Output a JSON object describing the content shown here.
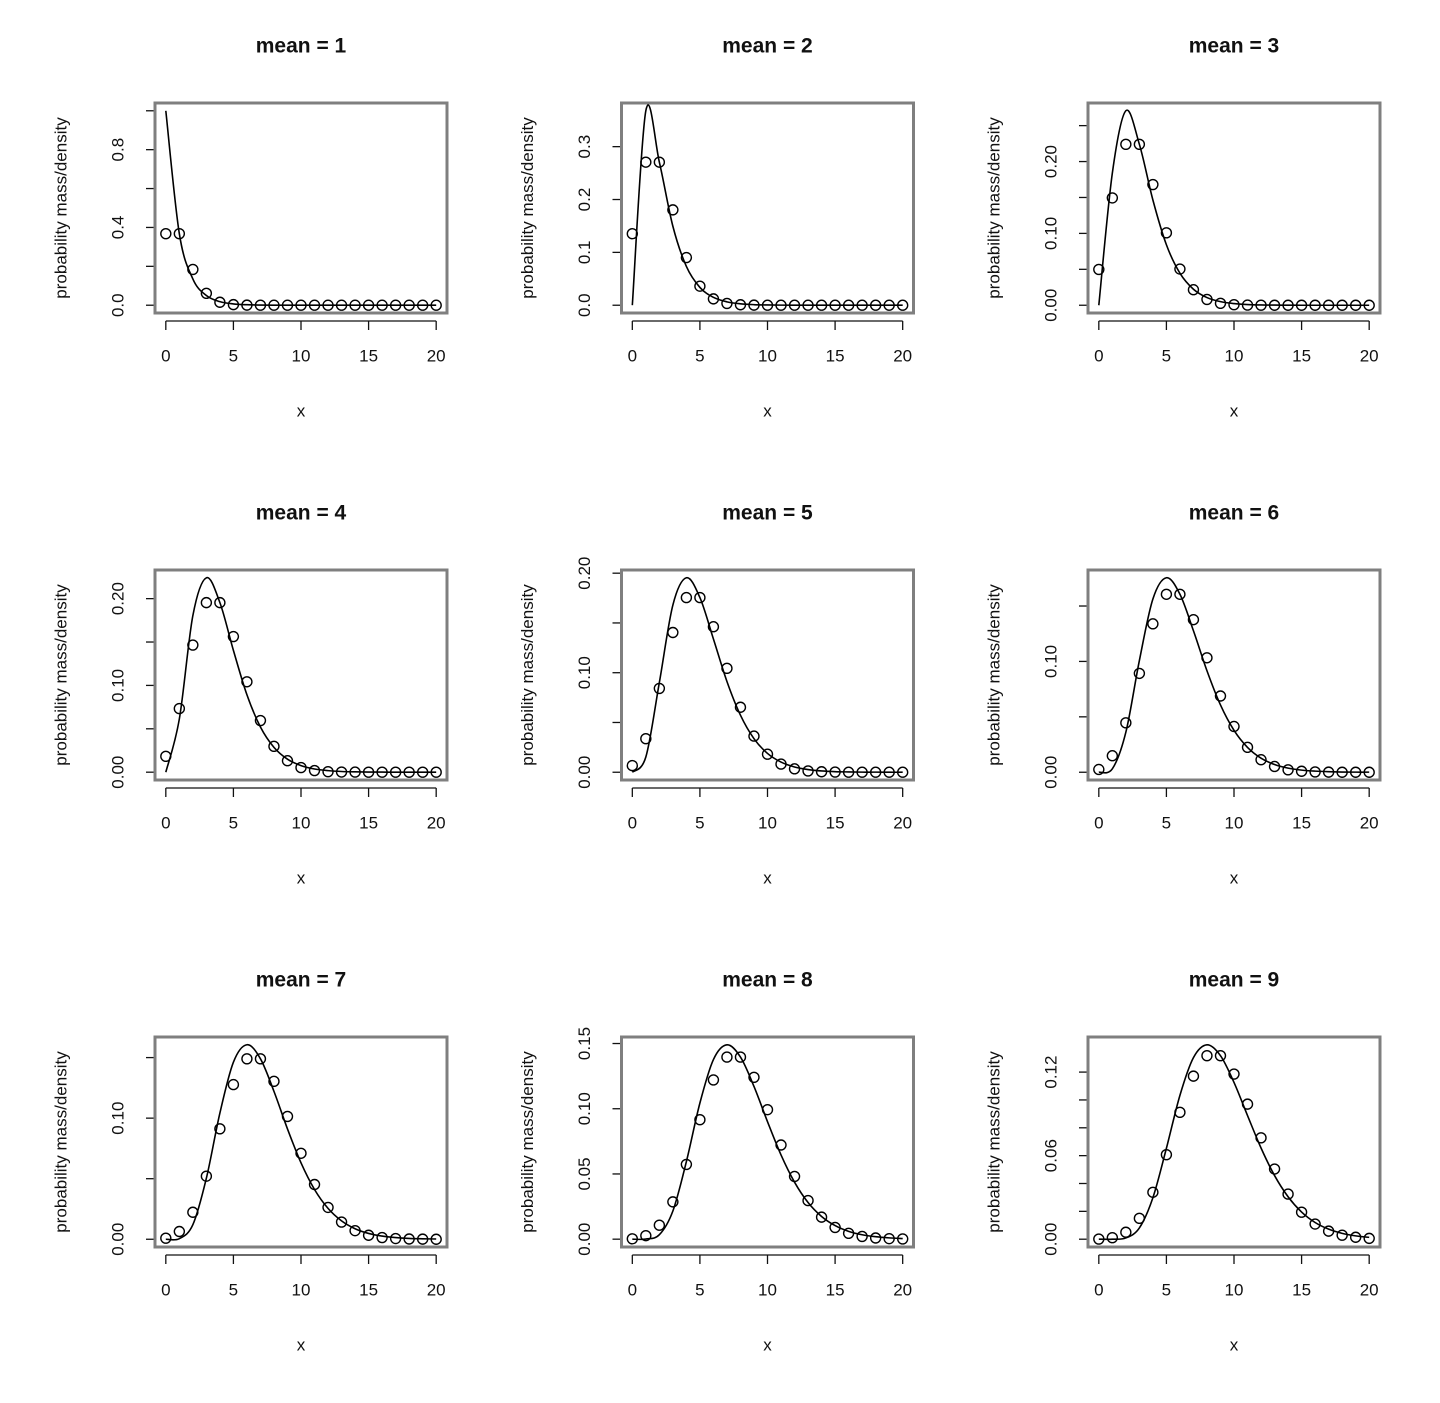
{
  "chart_data": [
    {
      "type": "line",
      "title": "mean = 1",
      "xlabel": "x",
      "ylabel": "probability mass/density",
      "x": [
        0,
        1,
        2,
        3,
        4,
        5,
        6,
        7,
        8,
        9,
        10,
        11,
        12,
        13,
        14,
        15,
        16,
        17,
        18,
        19,
        20
      ],
      "series": [
        {
          "style": "points",
          "color": "#000000",
          "values": [
            0.3679,
            0.3679,
            0.1839,
            0.0613,
            0.0153,
            0.0031,
            0.0005,
            0.0001,
            0,
            0,
            0,
            0,
            0,
            0,
            0,
            0,
            0,
            0,
            0,
            0,
            0
          ]
        },
        {
          "style": "line",
          "color": "#000000",
          "values": [
            1,
            0.3679,
            0.1353,
            0.0498,
            0.0183,
            0.0067,
            0.0025,
            0.0009,
            0.0003,
            0.0001,
            0,
            0,
            0,
            0,
            0,
            0,
            0,
            0,
            0,
            0,
            0
          ]
        }
      ],
      "xlim": [
        -0.8,
        20.8
      ],
      "xticks": [
        0,
        5,
        10,
        15,
        20
      ],
      "ylim": [
        -0.04,
        1.04
      ],
      "yticks": [
        {
          "value": 0,
          "label": "0.0"
        },
        0.4,
        0.8
      ],
      "yticks_unlabeled": [
        0.2,
        0.6,
        1
      ]
    },
    {
      "type": "line",
      "title": "mean = 2",
      "xlabel": "x",
      "ylabel": "probability mass/density",
      "x": [
        0,
        1,
        2,
        3,
        4,
        5,
        6,
        7,
        8,
        9,
        10,
        11,
        12,
        13,
        14,
        15,
        16,
        17,
        18,
        19,
        20
      ],
      "series": [
        {
          "style": "points",
          "color": "#000000",
          "values": [
            0.1353,
            0.2707,
            0.2707,
            0.1804,
            0.0902,
            0.0361,
            0.012,
            0.0034,
            0.0009,
            0.0002,
            0,
            0,
            0,
            0,
            0,
            0,
            0,
            0,
            0,
            0,
            0
          ]
        },
        {
          "style": "line",
          "color": "#000000",
          "values": [
            0,
            0.3679,
            0.2707,
            0.1494,
            0.0733,
            0.0337,
            0.0149,
            0.0064,
            0.0027,
            0.0011,
            0.0005,
            0.0002,
            0.0001,
            0,
            0,
            0,
            0,
            0,
            0,
            0,
            0
          ]
        }
      ],
      "xlim": [
        -0.8,
        20.8
      ],
      "xticks": [
        0,
        5,
        10,
        15,
        20
      ],
      "ylim": [
        -0.0147,
        0.3826
      ],
      "yticks": [
        {
          "value": 0,
          "label": "0.0"
        },
        0.1,
        0.2,
        0.3
      ],
      "yticks_unlabeled": []
    },
    {
      "type": "line",
      "title": "mean = 3",
      "xlabel": "x",
      "ylabel": "probability mass/density",
      "x": [
        0,
        1,
        2,
        3,
        4,
        5,
        6,
        7,
        8,
        9,
        10,
        11,
        12,
        13,
        14,
        15,
        16,
        17,
        18,
        19,
        20
      ],
      "series": [
        {
          "style": "points",
          "color": "#000000",
          "values": [
            0.0498,
            0.1494,
            0.224,
            0.224,
            0.168,
            0.1008,
            0.0504,
            0.0216,
            0.0081,
            0.0027,
            0.0008,
            0.0002,
            0.0001,
            0,
            0,
            0,
            0,
            0,
            0,
            0,
            0
          ]
        },
        {
          "style": "line",
          "color": "#000000",
          "values": [
            0,
            0.1839,
            0.2707,
            0.224,
            0.1465,
            0.0842,
            0.0446,
            0.0223,
            0.0107,
            0.005,
            0.0023,
            0.001,
            0.0004,
            0.0002,
            0.0001,
            0,
            0,
            0,
            0,
            0,
            0
          ]
        }
      ],
      "xlim": [
        -0.8,
        20.8
      ],
      "xticks": [
        0,
        5,
        10,
        15,
        20
      ],
      "ylim": [
        -0.0108,
        0.2815
      ],
      "yticks": [
        {
          "value": 0,
          "label": "0.00"
        },
        {
          "value": 0.1,
          "label": "0.10"
        },
        {
          "value": 0.2,
          "label": "0.20"
        }
      ],
      "yticks_unlabeled": [
        0.05,
        0.15,
        0.25
      ]
    },
    {
      "type": "line",
      "title": "mean = 4",
      "xlabel": "x",
      "ylabel": "probability mass/density",
      "x": [
        0,
        1,
        2,
        3,
        4,
        5,
        6,
        7,
        8,
        9,
        10,
        11,
        12,
        13,
        14,
        15,
        16,
        17,
        18,
        19,
        20
      ],
      "series": [
        {
          "style": "points",
          "color": "#000000",
          "values": [
            0.0183,
            0.0733,
            0.1465,
            0.1954,
            0.1954,
            0.1563,
            0.1042,
            0.0595,
            0.0298,
            0.0132,
            0.0053,
            0.0019,
            0.0006,
            0.0002,
            0.0001,
            0,
            0,
            0,
            0,
            0,
            0
          ]
        },
        {
          "style": "line",
          "color": "#000000",
          "values": [
            0,
            0.0613,
            0.1804,
            0.224,
            0.1954,
            0.1404,
            0.0892,
            0.0521,
            0.0286,
            0.015,
            0.0076,
            0.0037,
            0.0018,
            0.0008,
            0.0004,
            0.0002,
            0.0001,
            0,
            0,
            0,
            0
          ]
        }
      ],
      "xlim": [
        -0.8,
        20.8
      ],
      "xticks": [
        0,
        5,
        10,
        15,
        20
      ],
      "ylim": [
        -0.009,
        0.233
      ],
      "yticks": [
        {
          "value": 0,
          "label": "0.00"
        },
        {
          "value": 0.1,
          "label": "0.10"
        },
        {
          "value": 0.2,
          "label": "0.20"
        }
      ],
      "yticks_unlabeled": [
        0.05,
        0.15
      ]
    },
    {
      "type": "line",
      "title": "mean = 5",
      "xlabel": "x",
      "ylabel": "probability mass/density",
      "x": [
        0,
        1,
        2,
        3,
        4,
        5,
        6,
        7,
        8,
        9,
        10,
        11,
        12,
        13,
        14,
        15,
        16,
        17,
        18,
        19,
        20
      ],
      "series": [
        {
          "style": "points",
          "color": "#000000",
          "values": [
            0.0067,
            0.0337,
            0.0842,
            0.1404,
            0.1755,
            0.1755,
            0.1462,
            0.1044,
            0.0653,
            0.0363,
            0.0181,
            0.0082,
            0.0034,
            0.0013,
            0.0005,
            0.0002,
            0,
            0,
            0,
            0,
            0
          ]
        },
        {
          "style": "line",
          "color": "#000000",
          "values": [
            0,
            0.0153,
            0.0902,
            0.168,
            0.1954,
            0.1755,
            0.1339,
            0.0912,
            0.0573,
            0.0337,
            0.0189,
            0.0102,
            0.0053,
            0.0027,
            0.0013,
            0.0006,
            0.0003,
            0.0001,
            0.0001,
            0,
            0
          ]
        }
      ],
      "xlim": [
        -0.8,
        20.8
      ],
      "xticks": [
        0,
        5,
        10,
        15,
        20
      ],
      "ylim": [
        -0.0078,
        0.2032
      ],
      "yticks": [
        {
          "value": 0,
          "label": "0.00"
        },
        {
          "value": 0.1,
          "label": "0.10"
        },
        {
          "value": 0.2,
          "label": "0.20"
        }
      ],
      "yticks_unlabeled": [
        0.05,
        0.15
      ]
    },
    {
      "type": "line",
      "title": "mean = 6",
      "xlabel": "x",
      "ylabel": "probability mass/density",
      "x": [
        0,
        1,
        2,
        3,
        4,
        5,
        6,
        7,
        8,
        9,
        10,
        11,
        12,
        13,
        14,
        15,
        16,
        17,
        18,
        19,
        20
      ],
      "series": [
        {
          "style": "points",
          "color": "#000000",
          "values": [
            0.0025,
            0.0149,
            0.0446,
            0.0892,
            0.1339,
            0.1606,
            0.1606,
            0.1377,
            0.1033,
            0.0688,
            0.0413,
            0.0225,
            0.0113,
            0.0052,
            0.0022,
            0.0009,
            0.0003,
            0.0001,
            0,
            0,
            0
          ]
        },
        {
          "style": "line",
          "color": "#000000",
          "values": [
            0,
            0.0031,
            0.0361,
            0.1008,
            0.1563,
            0.1755,
            0.1606,
            0.1277,
            0.0916,
            0.0607,
            0.0378,
            0.0224,
            0.0127,
            0.007,
            0.0037,
            0.0019,
            0.001,
            0.0005,
            0.0002,
            0.0001,
            0.0001
          ]
        }
      ],
      "xlim": [
        -0.8,
        20.8
      ],
      "xticks": [
        0,
        5,
        10,
        15,
        20
      ],
      "ylim": [
        -0.007,
        0.1825
      ],
      "yticks": [
        {
          "value": 0,
          "label": "0.00"
        },
        {
          "value": 0.1,
          "label": "0.10"
        }
      ],
      "yticks_unlabeled": [
        0.05,
        0.15
      ]
    },
    {
      "type": "line",
      "title": "mean = 7",
      "xlabel": "x",
      "ylabel": "probability mass/density",
      "x": [
        0,
        1,
        2,
        3,
        4,
        5,
        6,
        7,
        8,
        9,
        10,
        11,
        12,
        13,
        14,
        15,
        16,
        17,
        18,
        19,
        20
      ],
      "series": [
        {
          "style": "points",
          "color": "#000000",
          "values": [
            0.0009,
            0.0064,
            0.0223,
            0.0521,
            0.0912,
            0.1277,
            0.149,
            0.149,
            0.1304,
            0.1014,
            0.071,
            0.0452,
            0.0263,
            0.0142,
            0.0071,
            0.0033,
            0.0014,
            0.0006,
            0.0002,
            0.0001,
            0
          ]
        },
        {
          "style": "line",
          "color": "#000000",
          "values": [
            0,
            0.0005,
            0.012,
            0.0504,
            0.1042,
            0.1462,
            0.1606,
            0.149,
            0.1221,
            0.0911,
            0.0631,
            0.0411,
            0.0255,
            0.0152,
            0.0087,
            0.0048,
            0.0026,
            0.0014,
            0.0007,
            0.0004,
            0.0002
          ]
        }
      ],
      "xlim": [
        -0.8,
        20.8
      ],
      "xticks": [
        0,
        5,
        10,
        15,
        20
      ],
      "ylim": [
        -0.0064,
        0.167
      ],
      "yticks": [
        {
          "value": 0,
          "label": "0.00"
        },
        {
          "value": 0.1,
          "label": "0.10"
        }
      ],
      "yticks_unlabeled": [
        0.05,
        0.15
      ]
    },
    {
      "type": "line",
      "title": "mean = 8",
      "xlabel": "x",
      "ylabel": "probability mass/density",
      "x": [
        0,
        1,
        2,
        3,
        4,
        5,
        6,
        7,
        8,
        9,
        10,
        11,
        12,
        13,
        14,
        15,
        16,
        17,
        18,
        19,
        20
      ],
      "series": [
        {
          "style": "points",
          "color": "#000000",
          "values": [
            0.0003,
            0.0027,
            0.0107,
            0.0286,
            0.0573,
            0.0916,
            0.1221,
            0.1396,
            0.1396,
            0.1241,
            0.0993,
            0.0722,
            0.0481,
            0.0296,
            0.0169,
            0.009,
            0.0045,
            0.0021,
            0.0009,
            0.0004,
            0.0002
          ]
        },
        {
          "style": "line",
          "color": "#000000",
          "values": [
            0,
            0.0001,
            0.0034,
            0.0216,
            0.0595,
            0.1044,
            0.1377,
            0.149,
            0.1396,
            0.1171,
            0.0901,
            0.0646,
            0.0437,
            0.0281,
            0.0174,
            0.0104,
            0.006,
            0.0034,
            0.0019,
            0.001,
            0.0005
          ]
        }
      ],
      "xlim": [
        -0.8,
        20.8
      ],
      "xticks": [
        0,
        5,
        10,
        15,
        20
      ],
      "ylim": [
        -0.006,
        0.155
      ],
      "yticks": [
        {
          "value": 0,
          "label": "0.00"
        },
        {
          "value": 0.05,
          "label": "0.05"
        },
        {
          "value": 0.1,
          "label": "0.10"
        },
        {
          "value": 0.15,
          "label": "0.15"
        }
      ],
      "yticks_unlabeled": []
    },
    {
      "type": "line",
      "title": "mean = 9",
      "xlabel": "x",
      "ylabel": "probability mass/density",
      "x": [
        0,
        1,
        2,
        3,
        4,
        5,
        6,
        7,
        8,
        9,
        10,
        11,
        12,
        13,
        14,
        15,
        16,
        17,
        18,
        19,
        20
      ],
      "series": [
        {
          "style": "points",
          "color": "#000000",
          "values": [
            0.0001,
            0.0011,
            0.005,
            0.015,
            0.0337,
            0.0607,
            0.0911,
            0.1171,
            0.1318,
            0.1318,
            0.1186,
            0.097,
            0.0728,
            0.0504,
            0.0324,
            0.0194,
            0.0109,
            0.0058,
            0.0029,
            0.0014,
            0.0006
          ]
        },
        {
          "style": "line",
          "color": "#000000",
          "values": [
            0,
            0,
            0.0009,
            0.0081,
            0.0298,
            0.0653,
            0.1033,
            0.1304,
            0.1396,
            0.1318,
            0.1126,
            0.0888,
            0.0655,
            0.0457,
            0.0305,
            0.0195,
            0.012,
            0.0072,
            0.0042,
            0.0024,
            0.0013
          ]
        }
      ],
      "xlim": [
        -0.8,
        20.8
      ],
      "xticks": [
        0,
        5,
        10,
        15,
        20
      ],
      "ylim": [
        -0.0056,
        0.1452
      ],
      "yticks": [
        {
          "value": 0,
          "label": "0.00"
        },
        {
          "value": 0.06,
          "label": "0.06"
        },
        {
          "value": 0.12,
          "label": "0.12"
        }
      ],
      "yticks_unlabeled": [
        0.02,
        0.04,
        0.08,
        0.1
      ]
    }
  ]
}
